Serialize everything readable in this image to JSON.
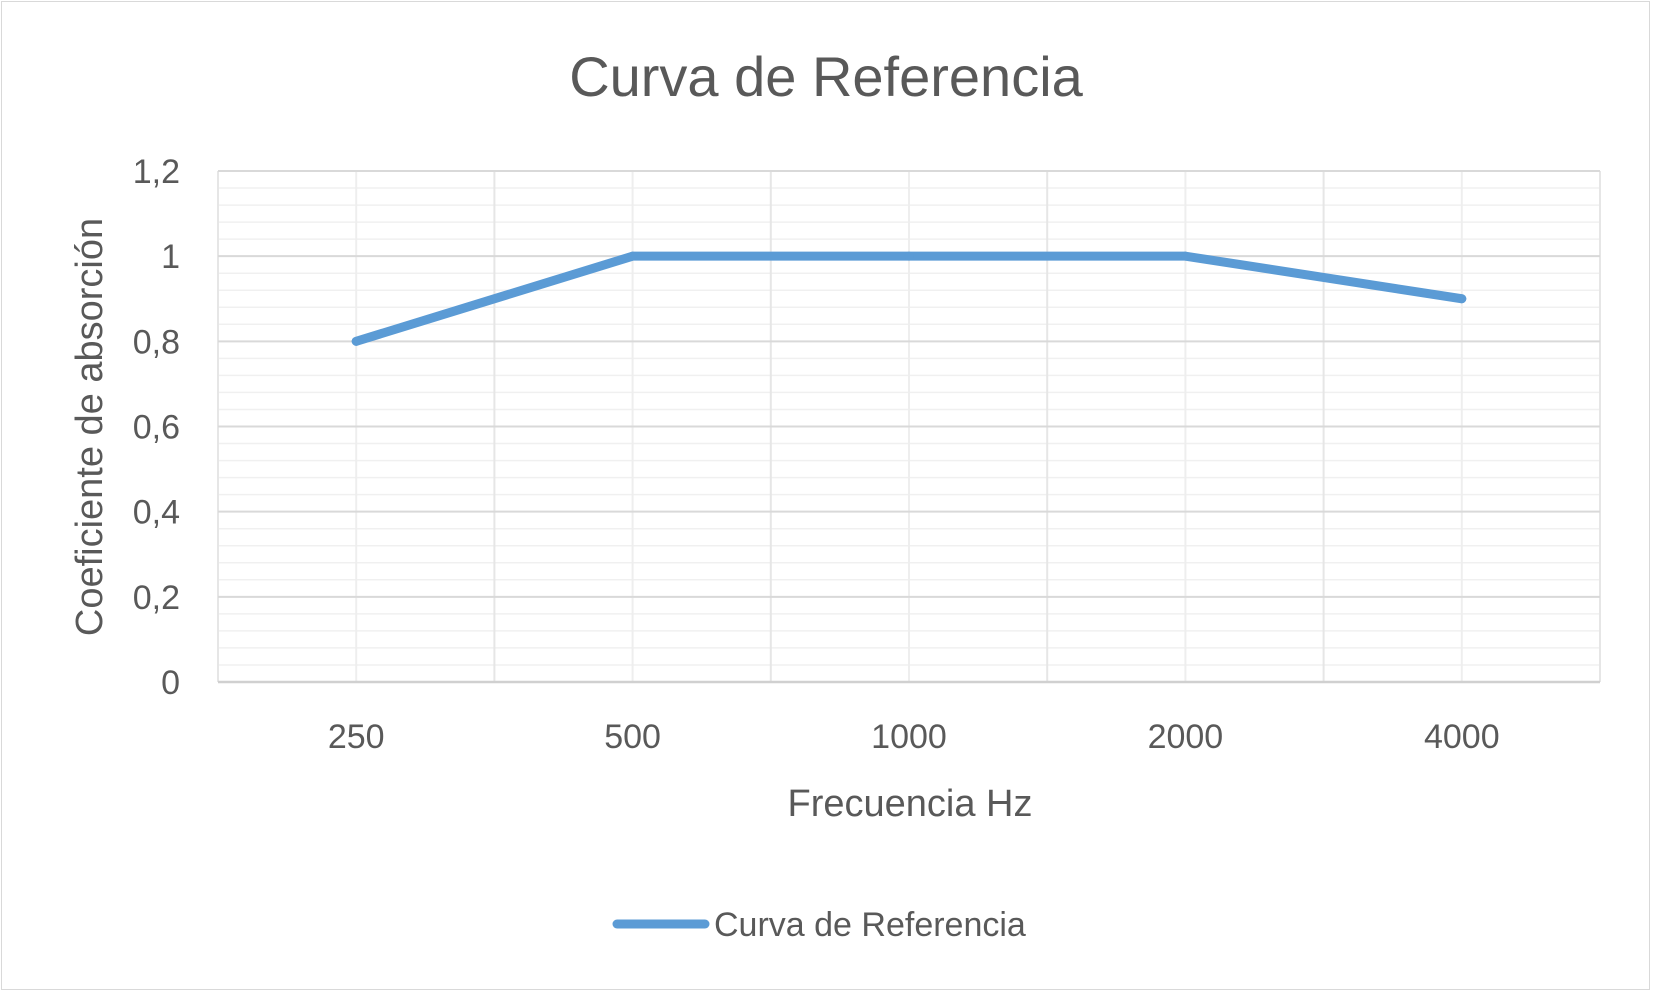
{
  "chart_data": {
    "type": "line",
    "title": "Curva de Referencia",
    "xlabel": "Frecuencia Hz",
    "ylabel": "Coeficiente de absorción",
    "categories": [
      "250",
      "500",
      "1000",
      "2000",
      "4000"
    ],
    "series": [
      {
        "name": "Curva de Referencia",
        "values": [
          0.8,
          1.0,
          1.0,
          1.0,
          0.9
        ],
        "color": "#5b9bd5"
      }
    ],
    "ylim": [
      0,
      1.2
    ],
    "yticks": [
      "0",
      "0,2",
      "0,4",
      "0,6",
      "0,8",
      "1",
      "1,2"
    ],
    "grid": true,
    "legend": "bottom"
  }
}
